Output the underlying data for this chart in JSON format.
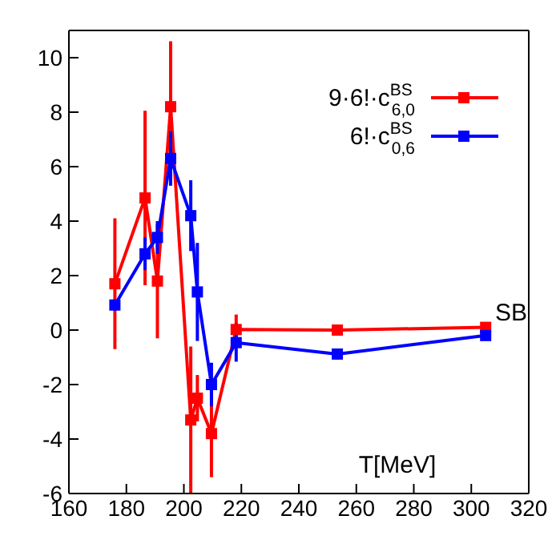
{
  "chart_data": {
    "type": "line",
    "xlabel": "T[MeV]",
    "xlim": [
      160,
      320
    ],
    "xticks": [
      160,
      180,
      200,
      220,
      240,
      260,
      280,
      300,
      320
    ],
    "ylim": [
      -6,
      11
    ],
    "yticks": [
      -6,
      -4,
      -2,
      0,
      2,
      4,
      6,
      8,
      10
    ],
    "grid": false,
    "legend": "top right",
    "marker": "square",
    "line_style": "solid",
    "series": [
      {
        "name": "9·6!·c$^{BS}$$_{6,0}$",
        "color": "#ff0000",
        "x": [
          176,
          186.5,
          190.8,
          195.4,
          202.4,
          204.7,
          209.6,
          218.2,
          253.4,
          305
        ],
        "values": [
          1.7,
          4.85,
          1.8,
          8.2,
          -3.3,
          -2.5,
          -3.8,
          0.02,
          0.0,
          0.1
        ],
        "errors": [
          2.4,
          3.2,
          2.1,
          2.4,
          2.7,
          0.85,
          1.6,
          0.55,
          0.2,
          0.1
        ]
      },
      {
        "name": "6!·c$^{BS}$$_{0,6}$",
        "color": "#0000ff",
        "x": [
          176,
          186.5,
          190.8,
          195.4,
          202.4,
          204.7,
          209.6,
          218.2,
          253.4,
          305
        ],
        "values": [
          0.92,
          2.8,
          3.4,
          6.3,
          4.2,
          1.4,
          -2.0,
          -0.46,
          -0.88,
          -0.2
        ],
        "errors": [
          0.2,
          0.6,
          0.6,
          1.0,
          1.3,
          1.8,
          0.8,
          0.7,
          0.2,
          0.1
        ]
      }
    ],
    "annotations": [
      "SB"
    ]
  }
}
